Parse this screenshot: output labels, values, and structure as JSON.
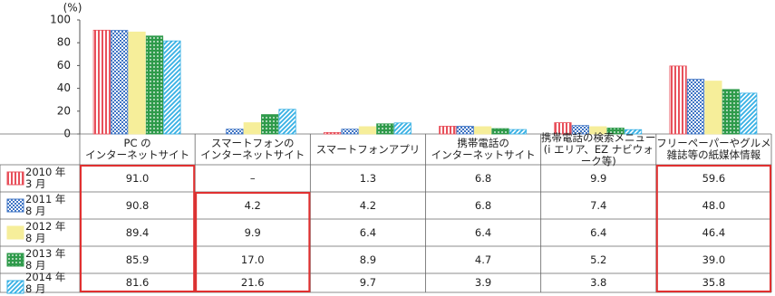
{
  "chart_data": {
    "type": "bar",
    "y_label": "(%)",
    "categories": [
      "PC の\nインターネットサイト",
      "スマートフォンの\nインターネットサイト",
      "スマートフォンアプリ",
      "携帯電話の\nインターネットサイト",
      "携帯電話の検索メニュー\n(i エリア、EZ ナビウォーク等)",
      "フリーペーパーやグルメ\n雑誌等の紙媒体情報"
    ],
    "series": [
      {
        "name": "2010 年\n3 月",
        "color": "#e8505b",
        "values": [
          91.0,
          null,
          1.3,
          6.8,
          9.9,
          59.6
        ],
        "value_labels": [
          "91.0",
          "–",
          "1.3",
          "6.8",
          "9.9",
          "59.6"
        ]
      },
      {
        "name": "2011 年\n8 月",
        "color": "#3f74c4",
        "values": [
          90.8,
          4.2,
          4.2,
          6.8,
          7.4,
          48.0
        ],
        "value_labels": [
          "90.8",
          "4.2",
          "4.2",
          "6.8",
          "7.4",
          "48.0"
        ]
      },
      {
        "name": "2012 年\n8 月",
        "color": "#f6ee9a",
        "values": [
          89.4,
          9.9,
          6.4,
          6.4,
          6.4,
          46.4
        ],
        "value_labels": [
          "89.4",
          "9.9",
          "6.4",
          "6.4",
          "6.4",
          "46.4"
        ]
      },
      {
        "name": "2013 年\n8 月",
        "color": "#2e9a4a",
        "values": [
          85.9,
          17.0,
          8.9,
          4.7,
          5.2,
          39.0
        ],
        "value_labels": [
          "85.9",
          "17.0",
          "8.9",
          "4.7",
          "5.2",
          "39.0"
        ]
      },
      {
        "name": "2014 年\n8 月",
        "color": "#36b0e4",
        "values": [
          81.6,
          21.6,
          9.7,
          3.9,
          3.8,
          35.8
        ],
        "value_labels": [
          "81.6",
          "21.6",
          "9.7",
          "3.9",
          "3.8",
          "35.8"
        ]
      }
    ],
    "ylim": [
      0,
      100
    ],
    "yticks": [
      0,
      20,
      40,
      60,
      80,
      100
    ]
  }
}
